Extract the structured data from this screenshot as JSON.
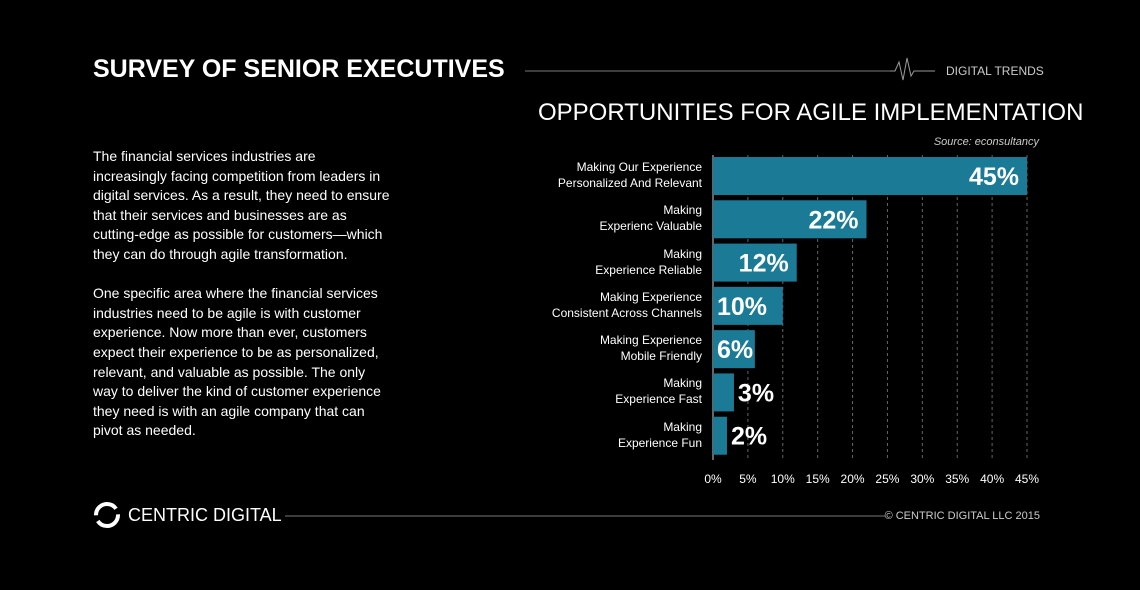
{
  "header": {
    "title": "SURVEY OF SENIOR EXECUTIVES",
    "tag": "DIGITAL TRENDS"
  },
  "body": {
    "paragraphs": [
      [
        "The financial services industries are",
        "increasingly facing competition from leaders in",
        "digital services. As a result, they need to ensure",
        "that their services and businesses are as",
        "cutting-edge as possible for customers—which",
        "they can do through agile transformation."
      ],
      [
        "One specific area where the financial services",
        "industries need to be agile is with customer",
        "experience. Now more than ever, customers",
        "expect their experience to be as personalized,",
        "relevant, and valuable as possible. The only",
        "way to deliver the kind of customer experience",
        "they need is with an agile company that can",
        "pivot as needed."
      ]
    ]
  },
  "chart_data": {
    "type": "hbar",
    "title": "OPPORTUNITIES FOR AGILE IMPLEMENTATION",
    "source": "Source:  econsultancy",
    "categories": [
      "Making Our Experience\nPersonalized And Relevant",
      "Making\nExperienc Valuable",
      "Making\nExperience Reliable",
      "Making Experience\nConsistent Across Channels",
      "Making Experience\nMobile Friendly",
      "Making\nExperience Fast",
      "Making\nExperience Fun"
    ],
    "values": [
      45,
      22,
      12,
      10,
      6,
      3,
      2
    ],
    "value_labels": [
      "45%",
      "22%",
      "12%",
      "10%",
      "6%",
      "3%",
      "2%"
    ],
    "color": "#1b7b96",
    "xlim": [
      0,
      45
    ],
    "xticks": [
      {
        "value": 0,
        "label": "0%"
      },
      {
        "value": 5,
        "label": "5%"
      },
      {
        "value": 10,
        "label": "10%"
      },
      {
        "value": 15,
        "label": "15%"
      },
      {
        "value": 20,
        "label": "20%"
      },
      {
        "value": 25,
        "label": "25%"
      },
      {
        "value": 30,
        "label": "30%"
      },
      {
        "value": 35,
        "label": "35%"
      },
      {
        "value": 40,
        "label": "40%"
      },
      {
        "value": 45,
        "label": "45%"
      }
    ],
    "grid": true
  },
  "footer": {
    "brand": "CENTRIC DIGITAL",
    "copyright": "© CENTRIC DIGITAL LLC 2015"
  }
}
